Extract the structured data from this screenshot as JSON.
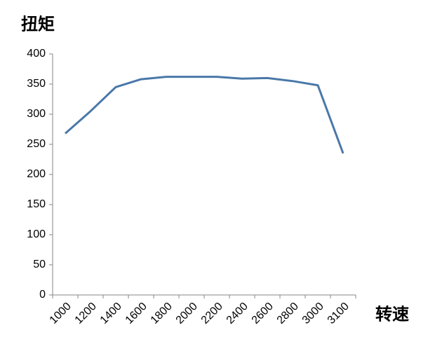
{
  "chart_data": {
    "type": "line",
    "y_label": "扭矩",
    "x_label": "转速",
    "categories": [
      1000,
      1200,
      1400,
      1600,
      1800,
      2000,
      2200,
      2400,
      2600,
      2800,
      3000,
      3100
    ],
    "values": [
      268,
      305,
      345,
      358,
      362,
      362,
      362,
      359,
      360,
      355,
      348,
      235
    ],
    "color": "#4a78a8",
    "ylim": [
      0,
      400
    ],
    "yticks": [
      0,
      50,
      100,
      150,
      200,
      250,
      300,
      350,
      400
    ],
    "grid": false
  }
}
